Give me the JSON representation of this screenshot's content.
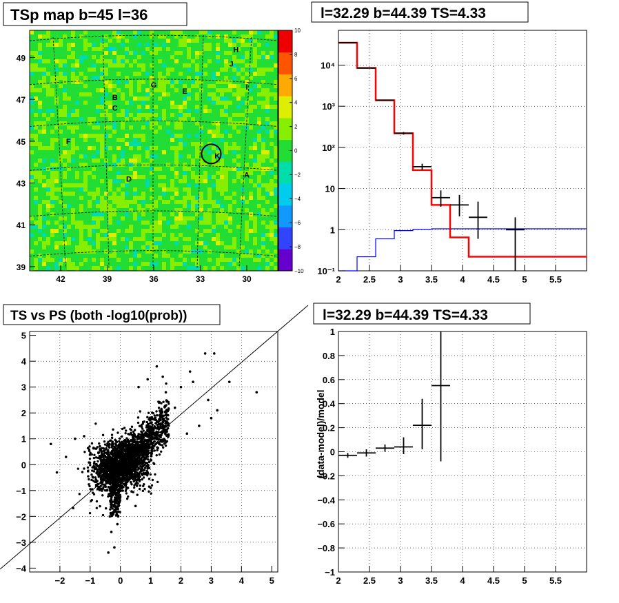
{
  "panels": {
    "map": {
      "title": "TSp map b=45 l=36",
      "x_ticks": [
        "42",
        "39",
        "36",
        "33",
        "30"
      ],
      "y_ticks": [
        "49",
        "47",
        "45",
        "43",
        "41",
        "39"
      ],
      "colorbar": {
        "ticks": [
          "10",
          "8",
          "6",
          "4",
          "2",
          "0",
          "−2",
          "−4",
          "−6",
          "−8",
          "−10"
        ],
        "range": [
          -10,
          10
        ],
        "colors": [
          "#6600cc",
          "#3344ff",
          "#1199ff",
          "#00ccee",
          "#00ddaa",
          "#22dd33",
          "#88ee00",
          "#ddee00",
          "#ffaa00",
          "#ff5500",
          "#ee0000"
        ]
      },
      "sources": [
        {
          "name": "H",
          "l": 30.7,
          "b": 49.4
        },
        {
          "name": "I",
          "l": 30.0,
          "b": 47.6
        },
        {
          "name": "J",
          "l": 31.0,
          "b": 48.7
        },
        {
          "name": "G",
          "l": 36.0,
          "b": 47.7
        },
        {
          "name": "E",
          "l": 34.0,
          "b": 47.4
        },
        {
          "name": "B",
          "l": 38.5,
          "b": 47.1
        },
        {
          "name": "C",
          "l": 38.5,
          "b": 46.6
        },
        {
          "name": "F",
          "l": 41.5,
          "b": 45.0
        },
        {
          "name": "K",
          "l": 31.9,
          "b": 44.3
        },
        {
          "name": "D",
          "l": 37.6,
          "b": 43.2
        },
        {
          "name": "A",
          "l": 30.0,
          "b": 43.4
        }
      ]
    },
    "spectrum": {
      "title": "l=32.29 b=44.39 TS=4.33",
      "x_ticks": [
        "2",
        "2.5",
        "3",
        "3.5",
        "4",
        "4.5",
        "5",
        "5.5"
      ],
      "y_ticks": [
        "10⁻¹",
        "1",
        "10",
        "10²",
        "10³",
        "10⁴"
      ]
    },
    "ts_vs_ps": {
      "title": "TS vs PS (both -log10(prob))",
      "x_ticks": [
        "−2",
        "−1",
        "0",
        "1",
        "2",
        "3",
        "4",
        "5"
      ],
      "y_ticks": [
        "5",
        "4",
        "3",
        "2",
        "1",
        "0",
        "−1",
        "−2",
        "−3",
        "−4"
      ]
    },
    "residual": {
      "title": "l=32.29 b=44.39 TS=4.33",
      "ylabel": "(data-model)/model",
      "x_ticks": [
        "2",
        "2.5",
        "3",
        "3.5",
        "4",
        "4.5",
        "5",
        "5.5"
      ],
      "y_ticks": [
        "1",
        "0.8",
        "0.6",
        "0.4",
        "0.2",
        "0",
        "−0.2",
        "−0.4",
        "−0.6",
        "−0.8",
        "−1"
      ]
    }
  },
  "chart_data": [
    {
      "type": "heatmap",
      "title": "TSp map b=45 l=36",
      "xlabel": "",
      "ylabel": "",
      "xlim": [
        44,
        28
      ],
      "ylim": [
        38.8,
        50.3
      ],
      "zlim": [
        -10,
        10
      ],
      "marked_position": {
        "l": 32.29,
        "b": 44.39
      },
      "tick_labels_x": [
        "42",
        "39",
        "36",
        "33",
        "30"
      ],
      "tick_labels_y": [
        "49",
        "47",
        "45",
        "43",
        "41",
        "39"
      ],
      "typical_value": 0.5
    },
    {
      "type": "line",
      "title": "l=32.29 b=44.39 TS=4.33",
      "xlim": [
        2,
        6
      ],
      "ylim": [
        0.1,
        70000
      ],
      "yscale": "log",
      "grid": true,
      "series": [
        {
          "name": "",
          "color": "#ff0000",
          "style": "step",
          "edges": [
            2,
            2.3,
            2.6,
            2.9,
            3.2,
            3.5,
            3.8,
            4.1,
            6
          ],
          "values": [
            35000,
            8500,
            1400,
            220,
            28,
            4.0,
            0.65,
            0.22
          ]
        },
        {
          "name": "",
          "color": "#0000ff",
          "style": "step",
          "edges": [
            2,
            2.3,
            2.6,
            2.9,
            3.2,
            3.5,
            6
          ],
          "values": [
            0.1,
            0.22,
            0.6,
            0.95,
            1.02,
            1.05
          ]
        },
        {
          "name": "",
          "color": "#000000",
          "style": "errorbar",
          "points": [
            {
              "x": 2.15,
              "y": 35000,
              "xerr": 0.15,
              "ylo": 34600,
              "yhi": 35400
            },
            {
              "x": 2.45,
              "y": 8500,
              "xerr": 0.15,
              "ylo": 8300,
              "yhi": 8700
            },
            {
              "x": 2.75,
              "y": 1400,
              "xerr": 0.15,
              "ylo": 1350,
              "yhi": 1450
            },
            {
              "x": 3.05,
              "y": 220,
              "xerr": 0.15,
              "ylo": 205,
              "yhi": 235
            },
            {
              "x": 3.35,
              "y": 34,
              "xerr": 0.15,
              "ylo": 28,
              "yhi": 40
            },
            {
              "x": 3.65,
              "y": 6,
              "xerr": 0.15,
              "ylo": 3.6,
              "yhi": 9
            },
            {
              "x": 3.95,
              "y": 4,
              "xerr": 0.15,
              "ylo": 2.1,
              "yhi": 7
            },
            {
              "x": 4.25,
              "y": 2,
              "xerr": 0.15,
              "ylo": 0.6,
              "yhi": 4.8
            },
            {
              "x": 4.85,
              "y": 1,
              "xerr": 0.15,
              "ylo": 0.1,
              "yhi": 2.0
            }
          ]
        }
      ]
    },
    {
      "type": "scatter",
      "title": "TS vs PS (both -log10(prob))",
      "xlim": [
        -3,
        5.2
      ],
      "ylim": [
        -4.15,
        5.15
      ],
      "grid": true,
      "diagonal": "y = x",
      "cloud": {
        "n": 2600,
        "center": [
          0,
          0
        ],
        "spread": 0.45
      },
      "points": [
        [
          2.8,
          4.3
        ],
        [
          3.1,
          4.3
        ],
        [
          3.6,
          3.2
        ],
        [
          4.5,
          2.8
        ],
        [
          2.3,
          3.6
        ],
        [
          2.0,
          3.0
        ],
        [
          2.4,
          3.2
        ],
        [
          1.2,
          3.8
        ],
        [
          0.9,
          3.3
        ],
        [
          1.5,
          2.8
        ],
        [
          1.8,
          2.2
        ],
        [
          2.6,
          1.5
        ],
        [
          3.0,
          1.8
        ],
        [
          2.9,
          2.5
        ],
        [
          3.2,
          2.1
        ],
        [
          -1.5,
          1.0
        ],
        [
          -2.3,
          0.8
        ],
        [
          -2.1,
          -0.3
        ],
        [
          -1.2,
          1.1
        ],
        [
          -0.4,
          -3.4
        ],
        [
          -0.2,
          -3.2
        ],
        [
          -0.3,
          -2.6
        ],
        [
          -0.1,
          -2.3
        ],
        [
          -0.35,
          -2.0
        ],
        [
          0.5,
          -1.6
        ],
        [
          -1.8,
          0.3
        ],
        [
          1.0,
          -0.9
        ],
        [
          2.2,
          1.2
        ],
        [
          0.6,
          3.0
        ],
        [
          1.4,
          3.4
        ]
      ],
      "column": {
        "x": 0.0,
        "y_from": -2.0,
        "y_to": 0.0
      }
    },
    {
      "type": "scatter",
      "title": "l=32.29 b=44.39 TS=4.33",
      "ylabel": "(data-model)/model",
      "xlim": [
        2,
        6
      ],
      "ylim": [
        -1,
        1
      ],
      "grid": true,
      "points": [
        {
          "x": 2.15,
          "y": -0.03,
          "xerr": 0.15,
          "ylo": -0.05,
          "yhi": -0.01
        },
        {
          "x": 2.45,
          "y": -0.01,
          "xerr": 0.15,
          "ylo": -0.04,
          "yhi": 0.02
        },
        {
          "x": 2.75,
          "y": 0.03,
          "xerr": 0.15,
          "ylo": 0.0,
          "yhi": 0.06
        },
        {
          "x": 3.05,
          "y": 0.04,
          "xerr": 0.15,
          "ylo": -0.02,
          "yhi": 0.12
        },
        {
          "x": 3.35,
          "y": 0.22,
          "xerr": 0.15,
          "ylo": 0.02,
          "yhi": 0.44
        },
        {
          "x": 3.65,
          "y": 0.55,
          "xerr": 0.15,
          "ylo": -0.08,
          "yhi": 1.0
        }
      ]
    }
  ]
}
